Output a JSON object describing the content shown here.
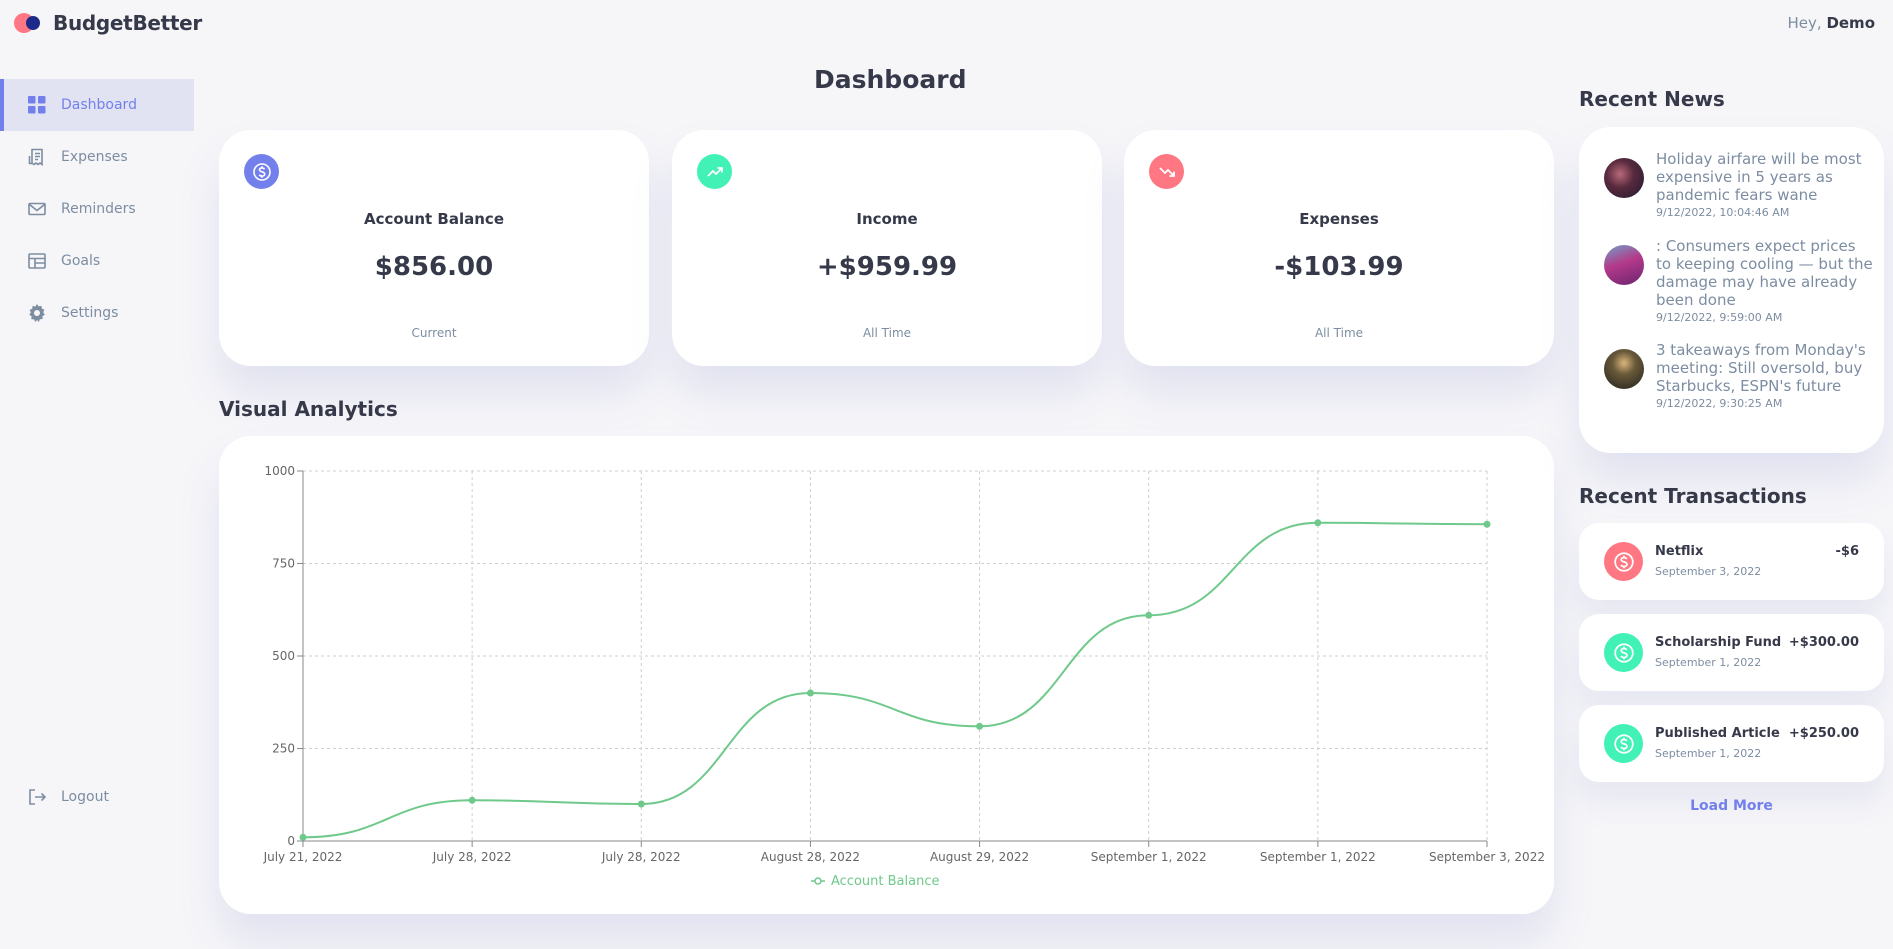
{
  "app": {
    "name": "BudgetBetter",
    "greeting_prefix": "Hey, ",
    "user": "Demo"
  },
  "sidebar": {
    "items": [
      {
        "label": "Dashboard",
        "icon": "grid-icon"
      },
      {
        "label": "Expenses",
        "icon": "receipt-icon"
      },
      {
        "label": "Reminders",
        "icon": "mail-icon"
      },
      {
        "label": "Goals",
        "icon": "table-icon"
      },
      {
        "label": "Settings",
        "icon": "gear-icon"
      }
    ],
    "logout": "Logout"
  },
  "main": {
    "title": "Dashboard",
    "cards": [
      {
        "label": "Account Balance",
        "value": "$856.00",
        "note": "Current",
        "icon": "dollar-icon",
        "color": "#7380ec"
      },
      {
        "label": "Income",
        "value": "+$959.99",
        "note": "All Time",
        "icon": "trending-up-icon",
        "color": "#41f1b6"
      },
      {
        "label": "Expenses",
        "value": "-$103.99",
        "note": "All Time",
        "icon": "trending-down-icon",
        "color": "#ff7782"
      }
    ],
    "analytics_title": "Visual Analytics"
  },
  "chart_data": {
    "type": "line",
    "categories": [
      "July 21, 2022",
      "July 28, 2022",
      "July 28, 2022",
      "August 28, 2022",
      "August 29, 2022",
      "September 1, 2022",
      "September 1, 2022",
      "September 3, 2022"
    ],
    "series": [
      {
        "name": "Account Balance",
        "values": [
          10,
          110,
          100,
          400,
          310,
          610,
          860,
          856
        ],
        "color": "#6fc98a"
      }
    ],
    "ylim": [
      0,
      1000
    ],
    "yticks": [
      0,
      250,
      500,
      750,
      1000
    ],
    "grid": true,
    "legend": "bottom"
  },
  "news": {
    "title": "Recent News",
    "items": [
      {
        "title": "Holiday airfare will be most expensive in 5 years as pandemic fears wane",
        "time": "9/12/2022, 10:04:46 AM"
      },
      {
        "title": ": Consumers expect prices to keeping cooling — but the damage may have already been done",
        "time": "9/12/2022, 9:59:00 AM"
      },
      {
        "title": "3 takeaways from Monday's meeting: Still oversold, buy Starbucks, ESPN's future",
        "time": "9/12/2022, 9:30:25 AM"
      }
    ]
  },
  "transactions": {
    "title": "Recent Transactions",
    "items": [
      {
        "name": "Netflix",
        "date": "September 3, 2022",
        "amount": "-$6",
        "color": "#ff7782"
      },
      {
        "name": "Scholarship Fund",
        "date": "September 1, 2022",
        "amount": "+$300.00",
        "color": "#41f1b6"
      },
      {
        "name": "Published Article",
        "date": "September 1, 2022",
        "amount": "+$250.00",
        "color": "#41f1b6"
      }
    ],
    "load_more": "Load More"
  }
}
